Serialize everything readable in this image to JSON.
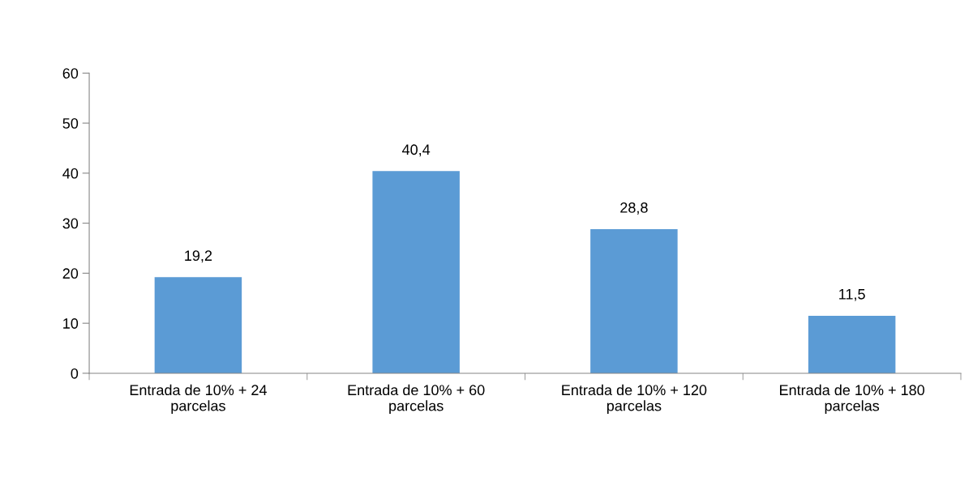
{
  "chart_data": {
    "type": "bar",
    "categories": [
      "Entrada de 10% + 24 parcelas",
      "Entrada de 10% + 60 parcelas",
      "Entrada de 10% + 120 parcelas",
      "Entrada de 10% + 180 parcelas"
    ],
    "values": [
      19.2,
      40.4,
      28.8,
      11.5
    ],
    "value_labels": [
      "19,2",
      "40,4",
      "28,8",
      "11,5"
    ],
    "color": "#5b9bd5",
    "ylim": [
      0,
      60
    ],
    "yticks": [
      0,
      10,
      20,
      30,
      40,
      50,
      60
    ],
    "grid": false,
    "legend": false
  }
}
